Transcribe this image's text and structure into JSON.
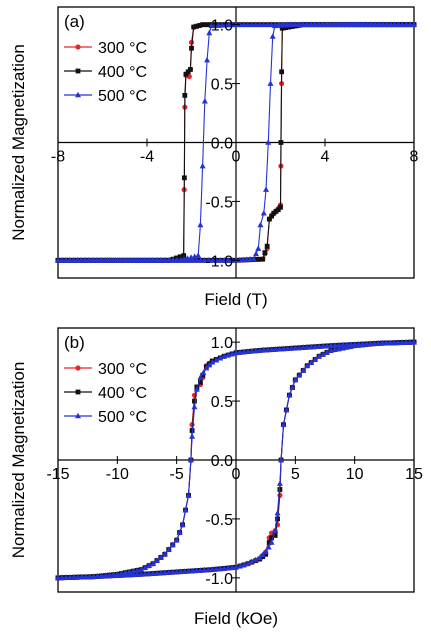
{
  "chart_data": [
    {
      "type": "line",
      "panel_label": "(a)",
      "xlabel": "Field (T)",
      "ylabel": "Normalized Magnetization",
      "xlim": [
        -8,
        8
      ],
      "ylim": [
        -1.15,
        1.15
      ],
      "x_ticks": [
        -8,
        -4,
        0,
        4,
        8
      ],
      "x_tick_labels": [
        "-8",
        "-4",
        "0",
        "4",
        "8"
      ],
      "y_ticks": [
        -1.0,
        -0.5,
        0.0,
        0.5,
        1.0
      ],
      "y_tick_labels": [
        "-1.0",
        "-0.5",
        "0.0",
        "0.5",
        "1.0"
      ],
      "legend_position": "top-left",
      "grid": false,
      "series": [
        {
          "name": "300 °C",
          "color": "#e8252a",
          "marker": "circle",
          "descending": [
            [
              8,
              1.0
            ],
            [
              3,
              1.0
            ],
            [
              0,
              1.0
            ],
            [
              -1.5,
              1.0
            ],
            [
              -1.9,
              0.98
            ],
            [
              -2.0,
              0.85
            ],
            [
              -2.05,
              0.62
            ],
            [
              -2.1,
              0.56
            ],
            [
              -2.18,
              0.58
            ],
            [
              -2.25,
              0.57
            ],
            [
              -2.3,
              0.3
            ],
            [
              -2.33,
              -0.4
            ],
            [
              -2.36,
              -0.97
            ],
            [
              -3,
              -1.0
            ],
            [
              -8,
              -1.0
            ]
          ],
          "ascending": [
            [
              -8,
              -1.0
            ],
            [
              -3,
              -1.0
            ],
            [
              0,
              -1.0
            ],
            [
              1.2,
              -0.99
            ],
            [
              1.4,
              -0.9
            ],
            [
              1.5,
              -0.65
            ],
            [
              1.65,
              -0.61
            ],
            [
              1.8,
              -0.58
            ],
            [
              1.95,
              -0.55
            ],
            [
              2.0,
              -0.53
            ],
            [
              2.02,
              -0.2
            ],
            [
              2.05,
              0.5
            ],
            [
              2.08,
              0.97
            ],
            [
              3,
              1.0
            ],
            [
              8,
              1.0
            ]
          ]
        },
        {
          "name": "400 °C",
          "color": "#111111",
          "marker": "square",
          "descending": [
            [
              8,
              1.0
            ],
            [
              3,
              1.0
            ],
            [
              0,
              1.0
            ],
            [
              -1.5,
              1.0
            ],
            [
              -1.9,
              0.98
            ],
            [
              -2.0,
              0.8
            ],
            [
              -2.05,
              0.62
            ],
            [
              -2.15,
              0.6
            ],
            [
              -2.25,
              0.58
            ],
            [
              -2.3,
              0.4
            ],
            [
              -2.32,
              -0.3
            ],
            [
              -2.35,
              -0.96
            ],
            [
              -3,
              -1.0
            ],
            [
              -8,
              -1.0
            ]
          ],
          "ascending": [
            [
              -8,
              -1.0
            ],
            [
              -3,
              -1.0
            ],
            [
              0,
              -1.0
            ],
            [
              1.2,
              -0.99
            ],
            [
              1.4,
              -0.88
            ],
            [
              1.5,
              -0.65
            ],
            [
              1.7,
              -0.6
            ],
            [
              1.9,
              -0.57
            ],
            [
              2.0,
              -0.55
            ],
            [
              2.02,
              0.0
            ],
            [
              2.05,
              0.6
            ],
            [
              2.08,
              0.97
            ],
            [
              3,
              1.0
            ],
            [
              8,
              1.0
            ]
          ]
        },
        {
          "name": "500 °C",
          "color": "#2433d6",
          "marker": "triangle",
          "descending": [
            [
              8,
              1.0
            ],
            [
              3,
              1.0
            ],
            [
              0,
              1.0
            ],
            [
              -1.1,
              0.99
            ],
            [
              -1.2,
              0.93
            ],
            [
              -1.3,
              0.7
            ],
            [
              -1.4,
              0.35
            ],
            [
              -1.5,
              -0.2
            ],
            [
              -1.6,
              -0.7
            ],
            [
              -1.7,
              -0.96
            ],
            [
              -2.5,
              -1.0
            ],
            [
              -8,
              -1.0
            ]
          ],
          "ascending": [
            [
              -8,
              -1.0
            ],
            [
              -3,
              -1.0
            ],
            [
              0,
              -1.0
            ],
            [
              0.8,
              -0.99
            ],
            [
              1.0,
              -0.9
            ],
            [
              1.1,
              -0.7
            ],
            [
              1.25,
              -0.6
            ],
            [
              1.35,
              -0.4
            ],
            [
              1.45,
              0.0
            ],
            [
              1.55,
              0.5
            ],
            [
              1.65,
              0.9
            ],
            [
              1.75,
              0.99
            ],
            [
              2.5,
              1.0
            ],
            [
              8,
              1.0
            ]
          ]
        }
      ]
    },
    {
      "type": "line",
      "panel_label": "(b)",
      "xlabel": "Field (kOe)",
      "ylabel": "Normalized Magnetization",
      "xlim": [
        -15,
        15
      ],
      "ylim": [
        -1.12,
        1.12
      ],
      "x_ticks": [
        -15,
        -10,
        -5,
        0,
        5,
        10,
        15
      ],
      "x_tick_labels": [
        "-15",
        "-10",
        "-5",
        "0",
        "5",
        "10",
        "15"
      ],
      "y_ticks": [
        -1.0,
        -0.5,
        0.0,
        0.5,
        1.0
      ],
      "y_tick_labels": [
        "-1.0",
        "-0.5",
        "0.0",
        "0.5",
        "1.0"
      ],
      "legend_position": "top-left",
      "grid": false,
      "series": [
        {
          "name": "300 °C",
          "color": "#e8252a",
          "marker": "circle",
          "descending": [
            [
              15,
              1.0
            ],
            [
              12,
              0.99
            ],
            [
              8,
              0.97
            ],
            [
              5,
              0.95
            ],
            [
              2,
              0.93
            ],
            [
              0,
              0.91
            ],
            [
              -1,
              0.88
            ],
            [
              -2,
              0.84
            ],
            [
              -2.5,
              0.8
            ],
            [
              -2.8,
              0.7
            ],
            [
              -3.0,
              0.64
            ],
            [
              -3.3,
              0.6
            ],
            [
              -3.5,
              0.55
            ],
            [
              -3.7,
              0.3
            ],
            [
              -3.8,
              0.0
            ],
            [
              -4.0,
              -0.3
            ],
            [
              -4.5,
              -0.55
            ],
            [
              -5,
              -0.68
            ],
            [
              -6,
              -0.8
            ],
            [
              -7,
              -0.88
            ],
            [
              -8,
              -0.93
            ],
            [
              -10,
              -0.97
            ],
            [
              -12,
              -0.99
            ],
            [
              -15,
              -1.0
            ]
          ],
          "ascending": [
            [
              -15,
              -1.0
            ],
            [
              -12,
              -0.99
            ],
            [
              -8,
              -0.97
            ],
            [
              -5,
              -0.95
            ],
            [
              -2,
              -0.93
            ],
            [
              0,
              -0.91
            ],
            [
              1,
              -0.88
            ],
            [
              2,
              -0.84
            ],
            [
              2.5,
              -0.78
            ],
            [
              2.8,
              -0.66
            ],
            [
              3.0,
              -0.62
            ],
            [
              3.3,
              -0.6
            ],
            [
              3.5,
              -0.55
            ],
            [
              3.7,
              -0.3
            ],
            [
              3.8,
              0.0
            ],
            [
              4.0,
              0.3
            ],
            [
              4.5,
              0.55
            ],
            [
              5,
              0.68
            ],
            [
              6,
              0.8
            ],
            [
              7,
              0.88
            ],
            [
              8,
              0.93
            ],
            [
              10,
              0.97
            ],
            [
              12,
              0.99
            ],
            [
              15,
              1.0
            ]
          ]
        },
        {
          "name": "400 °C",
          "color": "#111111",
          "marker": "square",
          "descending": [
            [
              15,
              1.0
            ],
            [
              12,
              0.99
            ],
            [
              8,
              0.97
            ],
            [
              5,
              0.95
            ],
            [
              2,
              0.93
            ],
            [
              0,
              0.91
            ],
            [
              -1,
              0.88
            ],
            [
              -2,
              0.84
            ],
            [
              -2.5,
              0.79
            ],
            [
              -2.8,
              0.72
            ],
            [
              -3.0,
              0.66
            ],
            [
              -3.3,
              0.62
            ],
            [
              -3.5,
              0.5
            ],
            [
              -3.7,
              0.25
            ],
            [
              -3.8,
              0.0
            ],
            [
              -4.0,
              -0.3
            ],
            [
              -4.5,
              -0.55
            ],
            [
              -5,
              -0.68
            ],
            [
              -6,
              -0.8
            ],
            [
              -7,
              -0.88
            ],
            [
              -8,
              -0.93
            ],
            [
              -10,
              -0.97
            ],
            [
              -12,
              -0.99
            ],
            [
              -15,
              -1.0
            ]
          ],
          "ascending": [
            [
              -15,
              -1.0
            ],
            [
              -12,
              -0.99
            ],
            [
              -8,
              -0.97
            ],
            [
              -5,
              -0.95
            ],
            [
              -2,
              -0.93
            ],
            [
              0,
              -0.91
            ],
            [
              1,
              -0.88
            ],
            [
              2,
              -0.84
            ],
            [
              2.5,
              -0.8
            ],
            [
              2.8,
              -0.7
            ],
            [
              3.0,
              -0.66
            ],
            [
              3.3,
              -0.64
            ],
            [
              3.5,
              -0.5
            ],
            [
              3.7,
              -0.25
            ],
            [
              3.8,
              0.0
            ],
            [
              4.0,
              0.3
            ],
            [
              4.5,
              0.55
            ],
            [
              5,
              0.68
            ],
            [
              6,
              0.8
            ],
            [
              7,
              0.88
            ],
            [
              8,
              0.93
            ],
            [
              10,
              0.97
            ],
            [
              12,
              0.99
            ],
            [
              15,
              1.0
            ]
          ]
        },
        {
          "name": "500 °C",
          "color": "#2433d6",
          "marker": "triangle",
          "descending": [
            [
              15,
              1.0
            ],
            [
              12,
              0.99
            ],
            [
              8,
              0.97
            ],
            [
              5,
              0.95
            ],
            [
              2,
              0.93
            ],
            [
              0,
              0.91
            ],
            [
              -1,
              0.88
            ],
            [
              -2,
              0.83
            ],
            [
              -2.5,
              0.78
            ],
            [
              -3.0,
              0.7
            ],
            [
              -3.3,
              0.6
            ],
            [
              -3.5,
              0.45
            ],
            [
              -3.7,
              0.2
            ],
            [
              -3.8,
              0.0
            ],
            [
              -4.0,
              -0.3
            ],
            [
              -4.5,
              -0.55
            ],
            [
              -5,
              -0.68
            ],
            [
              -6,
              -0.8
            ],
            [
              -7,
              -0.88
            ],
            [
              -8,
              -0.93
            ],
            [
              -10,
              -0.97
            ],
            [
              -12,
              -0.99
            ],
            [
              -15,
              -1.0
            ]
          ],
          "ascending": [
            [
              -15,
              -1.0
            ],
            [
              -12,
              -0.99
            ],
            [
              -8,
              -0.97
            ],
            [
              -5,
              -0.95
            ],
            [
              -2,
              -0.93
            ],
            [
              0,
              -0.91
            ],
            [
              1,
              -0.88
            ],
            [
              2,
              -0.83
            ],
            [
              2.5,
              -0.78
            ],
            [
              3.0,
              -0.7
            ],
            [
              3.3,
              -0.6
            ],
            [
              3.5,
              -0.45
            ],
            [
              3.7,
              -0.2
            ],
            [
              3.8,
              0.0
            ],
            [
              4.0,
              0.3
            ],
            [
              4.5,
              0.55
            ],
            [
              5,
              0.68
            ],
            [
              6,
              0.8
            ],
            [
              7,
              0.88
            ],
            [
              8,
              0.93
            ],
            [
              10,
              0.97
            ],
            [
              12,
              0.99
            ],
            [
              15,
              1.0
            ]
          ]
        }
      ]
    }
  ]
}
